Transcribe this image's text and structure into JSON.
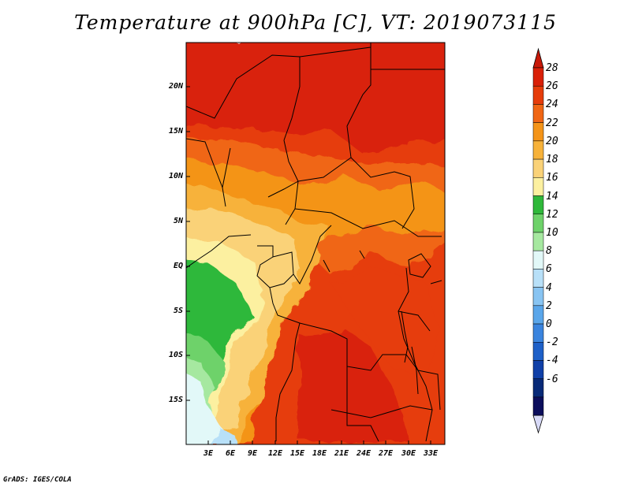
{
  "title": "Temperature at 900hPa [C], VT: 2019073115",
  "credit": "GrADS: IGES/COLA",
  "map": {
    "lat_labels": [
      "20N",
      "15N",
      "10N",
      "5N",
      "EQ",
      "5S",
      "10S",
      "15S"
    ],
    "lon_labels": [
      "3E",
      "6E",
      "9E",
      "12E",
      "15E",
      "18E",
      "21E",
      "24E",
      "27E",
      "30E",
      "33E"
    ]
  },
  "colorbar": {
    "labels": [
      "28",
      "26",
      "24",
      "22",
      "20",
      "18",
      "16",
      "14",
      "12",
      "10",
      "8",
      "6",
      "4",
      "2",
      "0",
      "-2",
      "-4",
      "-6"
    ],
    "colors": [
      "#d92008",
      "#e63c0a",
      "#f06614",
      "#f49418",
      "#f7b23a",
      "#fad278",
      "#fcf0a0",
      "#2fb83a",
      "#6ed26a",
      "#a6e8a0",
      "#e2f8f8",
      "#b8e0f8",
      "#88c4f2",
      "#5aa6ea",
      "#3a84de",
      "#1e60c8",
      "#1040a8",
      "#082a78",
      "#0c0e5c"
    ],
    "top_arrow_color": "#c81808",
    "bottom_arrow_color": "#d8daf8"
  }
}
